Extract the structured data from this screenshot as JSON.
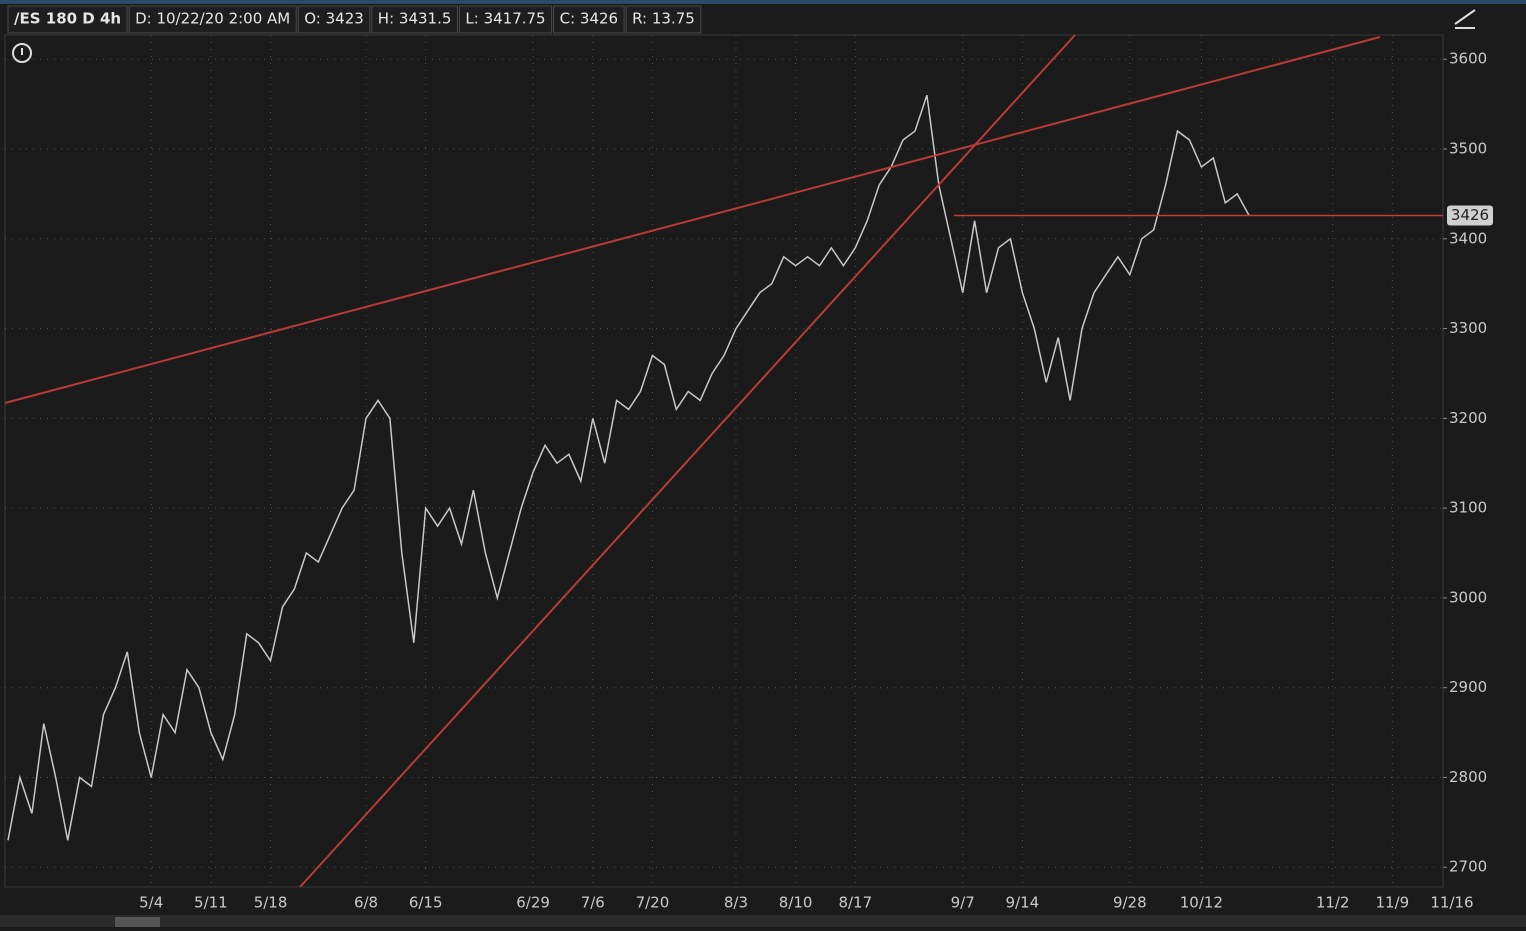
{
  "header": {
    "symbol": "/ES 180 D 4h",
    "fields": [
      "D: 10/22/20 2:00 AM",
      "O: 3423",
      "H: 3431.5",
      "L: 3417.75",
      "C: 3426",
      "R: 13.75"
    ]
  },
  "chart_data": {
    "type": "line",
    "color": "#c8c8c8",
    "categories": [
      null,
      null,
      null,
      null,
      null,
      null,
      null,
      null,
      null,
      null,
      null,
      null,
      "5/4",
      null,
      null,
      null,
      null,
      "5/11",
      null,
      null,
      null,
      null,
      "5/18",
      null,
      null,
      null,
      null,
      null,
      null,
      null,
      "6/8",
      null,
      null,
      null,
      null,
      "6/15",
      null,
      null,
      null,
      null,
      null,
      null,
      null,
      null,
      "6/29",
      null,
      null,
      null,
      null,
      "7/6",
      null,
      null,
      null,
      null,
      "7/20",
      null,
      null,
      null,
      null,
      null,
      null,
      "8/3",
      null,
      null,
      null,
      null,
      "8/10",
      null,
      null,
      null,
      null,
      "8/17",
      null,
      null,
      null,
      null,
      null,
      null,
      null,
      null,
      "9/7",
      null,
      null,
      null,
      null,
      "9/14",
      null,
      null,
      null,
      null,
      null,
      null,
      null,
      null,
      "9/28",
      null,
      null,
      null,
      null,
      null,
      "10/12",
      null,
      null,
      null,
      null,
      null,
      null,
      null,
      null,
      null,
      null,
      "11/2",
      null,
      null,
      null,
      null,
      "11/9",
      null,
      null,
      null,
      null,
      "11/16"
    ],
    "values": [
      2730,
      2800,
      2760,
      2860,
      2800,
      2730,
      2800,
      2790,
      2870,
      2900,
      2940,
      2850,
      2800,
      2870,
      2850,
      2920,
      2900,
      2850,
      2820,
      2870,
      2960,
      2950,
      2930,
      2990,
      3010,
      3050,
      3040,
      3070,
      3100,
      3120,
      3200,
      3220,
      3200,
      3050,
      2950,
      3100,
      3080,
      3100,
      3060,
      3120,
      3050,
      3000,
      3050,
      3100,
      3140,
      3170,
      3150,
      3160,
      3130,
      3200,
      3150,
      3220,
      3210,
      3230,
      3270,
      3260,
      3210,
      3230,
      3220,
      3250,
      3270,
      3300,
      3320,
      3340,
      3350,
      3380,
      3370,
      3380,
      3370,
      3390,
      3370,
      3390,
      3420,
      3460,
      3480,
      3510,
      3520,
      3560,
      3460,
      3400,
      3340,
      3420,
      3340,
      3390,
      3400,
      3340,
      3300,
      3240,
      3290,
      3220,
      3300,
      3340,
      3360,
      3380,
      3360,
      3400,
      3410,
      3460,
      3520,
      3510,
      3480,
      3490,
      3440,
      3450,
      3426,
      null,
      null,
      null,
      null,
      null,
      null,
      null,
      null,
      null,
      null,
      null,
      null,
      null,
      null,
      null,
      null,
      null
    ],
    "last_price": 3426,
    "last_price_color": "#c23b3b",
    "ylim": [
      2678,
      3627
    ],
    "yticks": [
      2700,
      2800,
      2900,
      3000,
      3100,
      3200,
      3300,
      3400,
      3500,
      3600
    ],
    "grid": true
  }
}
